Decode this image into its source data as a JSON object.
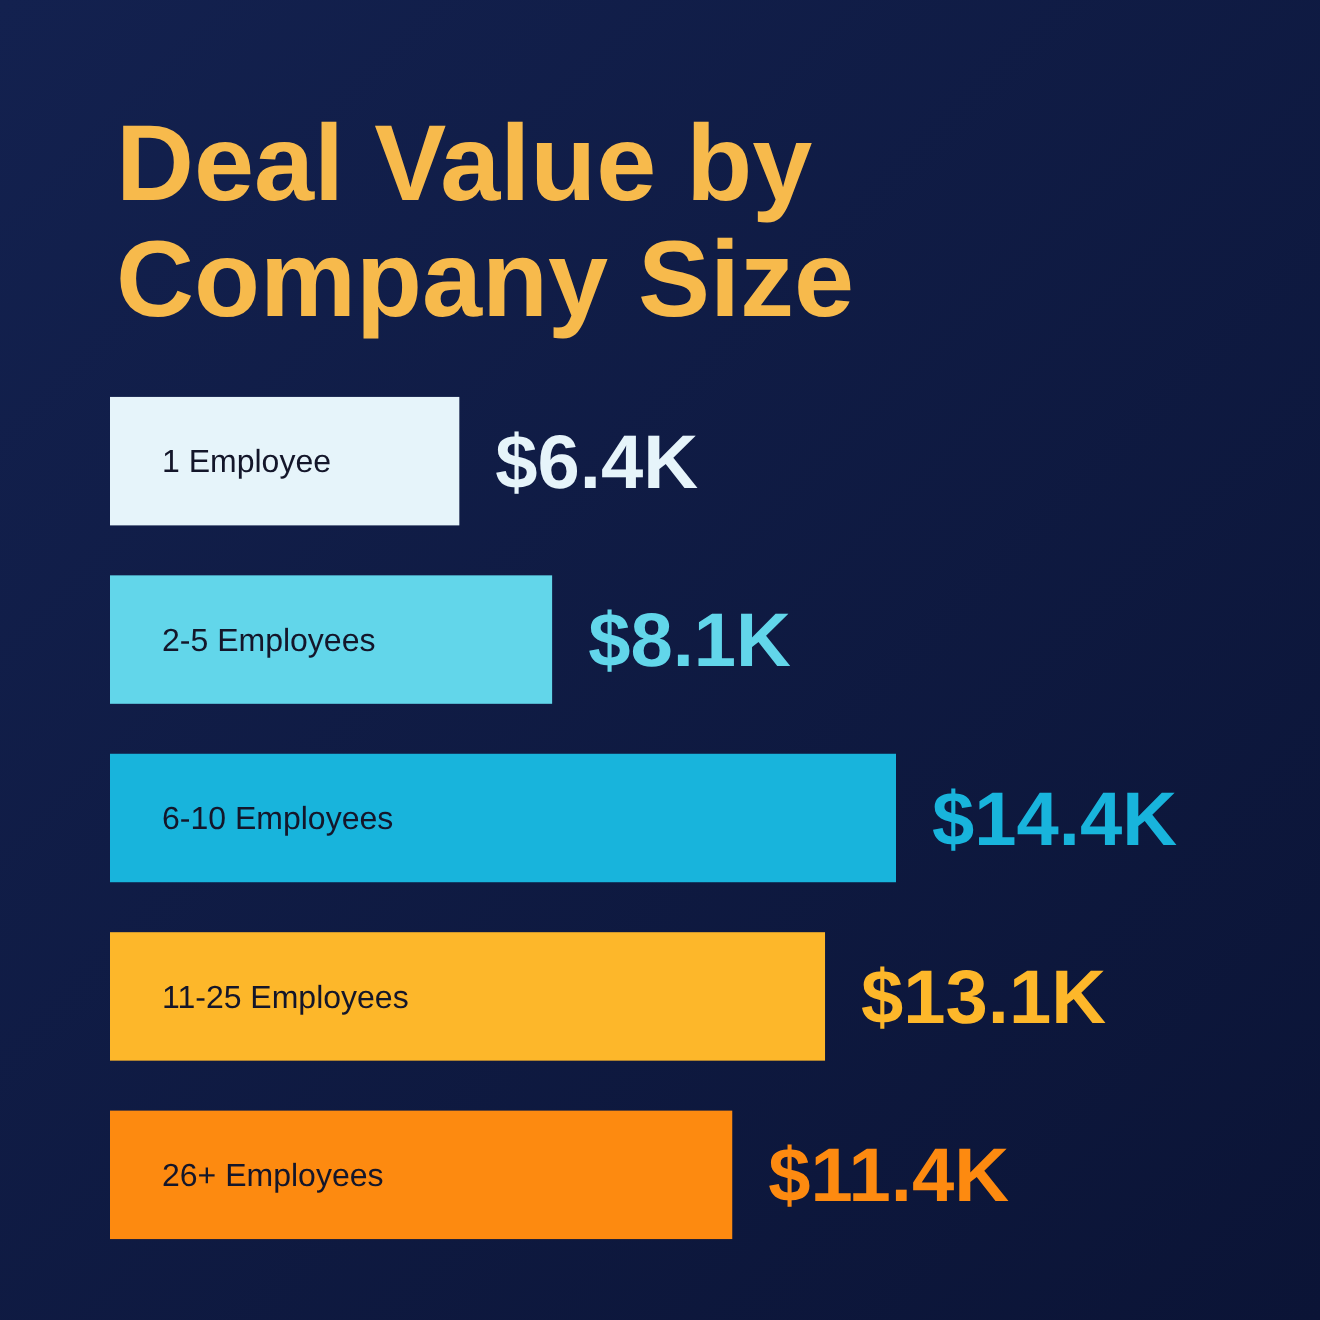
{
  "chart_data": {
    "type": "bar",
    "orientation": "horizontal",
    "title": "Deal Value by Company Size",
    "categories": [
      "1 Employee",
      "2-5 Employees",
      "6-10 Employees",
      "11-25 Employees",
      "26+ Employees"
    ],
    "values": [
      6.4,
      8.1,
      14.4,
      13.1,
      11.4
    ],
    "colors": [
      "#e6f4fa",
      "#62d6ea",
      "#18b4dc",
      "#fdb72a",
      "#fd8a10"
    ],
    "value_labels": [
      "$6.4K",
      "$8.1K",
      "$14.4K",
      "$13.1K",
      "$11.4K"
    ]
  }
}
